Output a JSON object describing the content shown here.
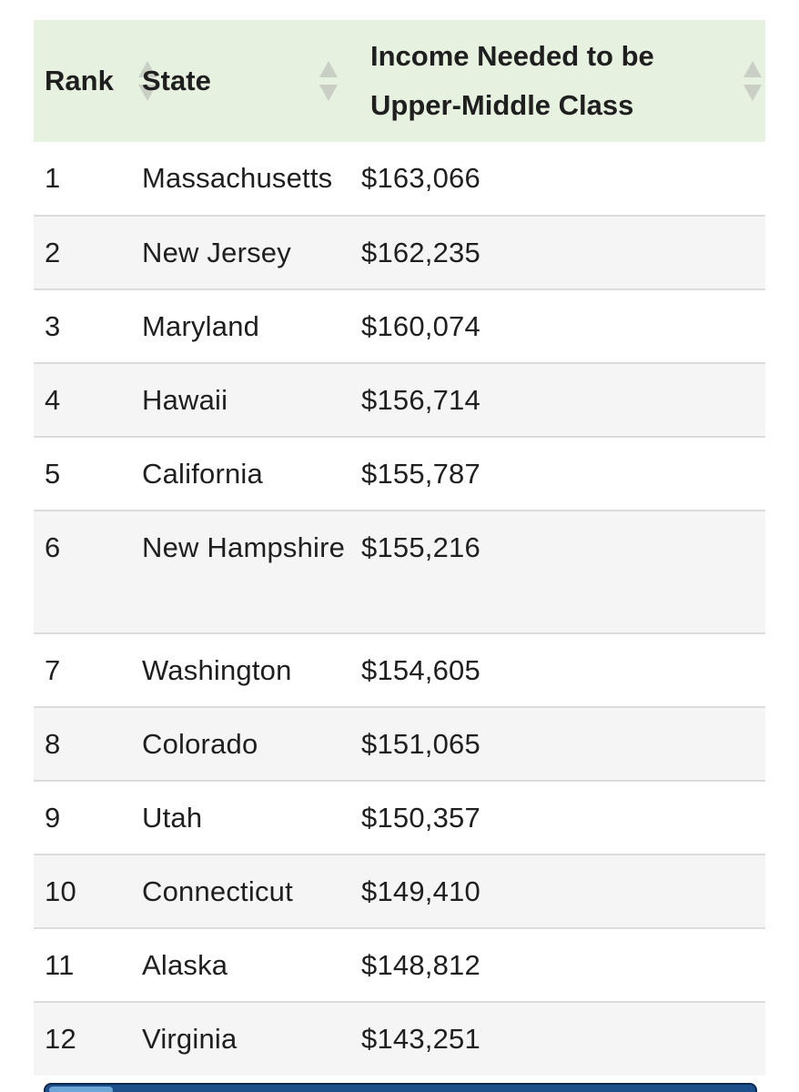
{
  "table": {
    "headers": {
      "rank": "Rank",
      "state": "State",
      "income": "Income Needed to be Upper-Middle Class"
    },
    "rows": [
      {
        "rank": "1",
        "state": "Massachusetts",
        "income": "$163,066"
      },
      {
        "rank": "2",
        "state": "New Jersey",
        "income": "$162,235"
      },
      {
        "rank": "3",
        "state": "Maryland",
        "income": "$160,074"
      },
      {
        "rank": "4",
        "state": "Hawaii",
        "income": "$156,714"
      },
      {
        "rank": "5",
        "state": "California",
        "income": "$155,787"
      },
      {
        "rank": "6",
        "state": "New Hampshire",
        "income": "$155,216"
      },
      {
        "rank": "7",
        "state": "Washington",
        "income": "$154,605"
      },
      {
        "rank": "8",
        "state": "Colorado",
        "income": "$151,065"
      },
      {
        "rank": "9",
        "state": "Utah",
        "income": "$150,357"
      },
      {
        "rank": "10",
        "state": "Connecticut",
        "income": "$149,410"
      },
      {
        "rank": "11",
        "state": "Alaska",
        "income": "$148,812"
      },
      {
        "rank": "12",
        "state": "Virginia",
        "income": "$143,251"
      }
    ]
  },
  "colors": {
    "header_background": "#e6f1e0",
    "striped_row": "#f5f5f5",
    "row_divider": "#dcdcdc",
    "sort_arrow": "#c9cfc5",
    "bottom_strip": "#1d4f8a"
  },
  "icons": {
    "sort": "sort-updown-icon"
  }
}
